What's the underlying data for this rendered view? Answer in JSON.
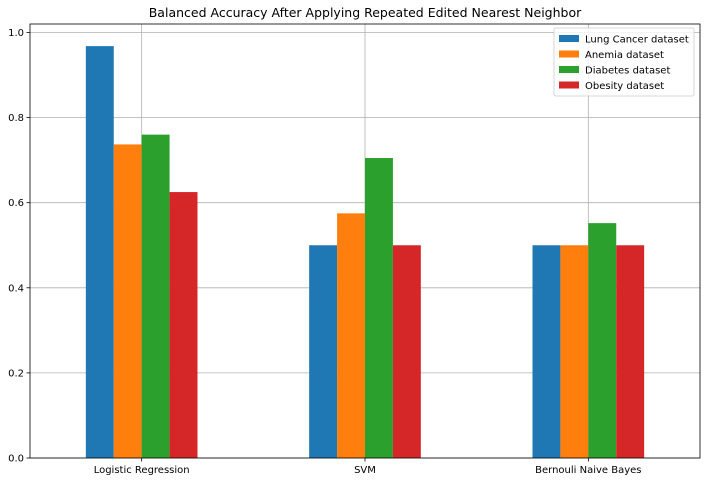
{
  "chart_data": {
    "type": "bar",
    "title": "Balanced Accuracy After Applying Repeated Edited Nearest Neighbor",
    "xlabel": "",
    "ylabel": "",
    "categories": [
      "Logistic Regression",
      "SVM",
      "Bernouli Naive Bayes"
    ],
    "ylim": [
      0,
      1.02
    ],
    "yticks": [
      "0.0",
      "0.2",
      "0.4",
      "0.6",
      "0.8",
      "1.0"
    ],
    "grid": true,
    "legend_position": "top-right",
    "series": [
      {
        "name": "Lung Cancer dataset",
        "color": "#1f77b4",
        "values": [
          0.968,
          0.5,
          0.5
        ]
      },
      {
        "name": "Anemia dataset",
        "color": "#ff7f0e",
        "values": [
          0.737,
          0.575,
          0.5
        ]
      },
      {
        "name": "Diabetes dataset",
        "color": "#2ca02c",
        "values": [
          0.76,
          0.705,
          0.552
        ]
      },
      {
        "name": "Obesity dataset",
        "color": "#d62728",
        "values": [
          0.625,
          0.5,
          0.5
        ]
      }
    ]
  }
}
